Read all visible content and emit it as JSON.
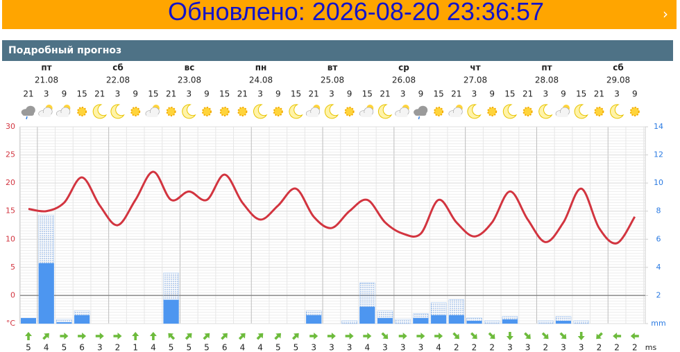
{
  "banner": {
    "text": "Обновлено: 2026-08-20 23:36:57",
    "arrow": "›"
  },
  "header": {
    "title": "Подробный прогноз"
  },
  "chart_data": {
    "type": "line",
    "days": [
      {
        "name": "пт",
        "date": "21.08"
      },
      {
        "name": "сб",
        "date": "22.08"
      },
      {
        "name": "вс",
        "date": "23.08"
      },
      {
        "name": "пн",
        "date": "24.08"
      },
      {
        "name": "вт",
        "date": "25.08"
      },
      {
        "name": "ср",
        "date": "26.08"
      },
      {
        "name": "чт",
        "date": "27.08"
      },
      {
        "name": "пт",
        "date": "28.08"
      },
      {
        "name": "сб",
        "date": "29.08"
      }
    ],
    "categories": [
      21,
      3,
      9,
      15,
      21,
      3,
      9,
      15,
      21,
      3,
      9,
      15,
      21,
      3,
      9,
      15,
      21,
      3,
      9,
      15,
      21,
      3,
      9,
      15,
      21,
      3,
      9,
      15,
      21,
      3,
      9,
      15,
      21,
      3,
      9
    ],
    "temperature": {
      "color": "#d2343f",
      "values": [
        15.4,
        15.0,
        16.5,
        21,
        16,
        12.5,
        17,
        22,
        17,
        18.5,
        17,
        21.5,
        16.5,
        13.5,
        16,
        19,
        14,
        12,
        15,
        17,
        13,
        11,
        11,
        17,
        13,
        10.5,
        13,
        18.5,
        13.5,
        9.5,
        13,
        19,
        12,
        9.3,
        14
      ]
    },
    "precipitation": {
      "color": "#4d96f0",
      "values": [
        0.4,
        4.3,
        0.1,
        0.6,
        null,
        null,
        null,
        null,
        1.7,
        null,
        null,
        null,
        null,
        null,
        null,
        null,
        0.6,
        null,
        0,
        1.2,
        0.4,
        0,
        0.4,
        0.6,
        0.6,
        0.2,
        0,
        0.3,
        null,
        0,
        0.2,
        0,
        null,
        null,
        null
      ],
      "max_values": [
        null,
        7.7,
        0.3,
        0.9,
        null,
        null,
        null,
        null,
        3.6,
        null,
        null,
        null,
        null,
        null,
        null,
        null,
        0.9,
        null,
        0.2,
        2.9,
        0.9,
        0.3,
        0.7,
        1.5,
        1.7,
        0.4,
        0.2,
        0.5,
        null,
        0.2,
        0.5,
        0.2,
        null,
        null,
        null
      ]
    },
    "ylim": [
      -5,
      30
    ],
    "yticks": [
      {
        "value": -5,
        "label": "°C"
      },
      0,
      5,
      10,
      15,
      20,
      25,
      30
    ],
    "y2lim": [
      0,
      14
    ],
    "y2ticks": [
      {
        "value": 0,
        "label": "mm"
      },
      2,
      4,
      6,
      8,
      10,
      12,
      14
    ],
    "wind": {
      "unit": "ms",
      "color": "#6dbb3c",
      "speed": [
        5,
        4,
        5,
        6,
        3,
        2,
        1,
        4,
        5,
        5,
        5,
        6,
        4,
        4,
        5,
        5,
        3,
        3,
        3,
        4,
        3,
        3,
        3,
        4,
        2,
        2,
        2,
        3,
        3,
        2,
        3,
        3,
        2,
        2,
        2
      ],
      "direction": [
        0,
        45,
        90,
        90,
        90,
        90,
        0,
        0,
        315,
        45,
        45,
        45,
        45,
        45,
        45,
        45,
        90,
        90,
        90,
        90,
        135,
        90,
        90,
        90,
        135,
        135,
        135,
        180,
        135,
        135,
        135,
        180,
        225,
        270,
        270
      ]
    }
  }
}
